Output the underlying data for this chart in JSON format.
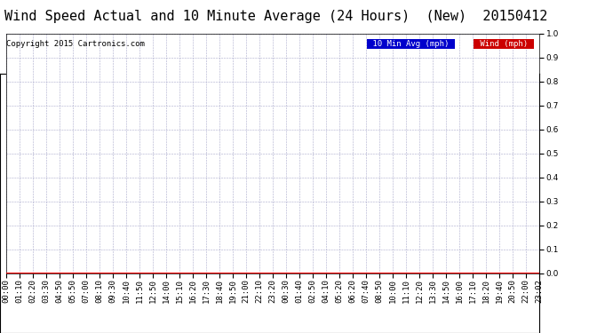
{
  "title": "Wind Speed Actual and 10 Minute Average (24 Hours)  (New)  20150412",
  "copyright": "Copyright 2015 Cartronics.com",
  "ylim": [
    0.0,
    1.0
  ],
  "yticks": [
    0.0,
    0.1,
    0.2,
    0.3,
    0.4,
    0.5,
    0.6,
    0.7,
    0.8,
    0.9,
    1.0
  ],
  "x_labels": [
    "00:00",
    "01:10",
    "02:20",
    "03:30",
    "04:50",
    "05:50",
    "07:00",
    "08:10",
    "09:30",
    "10:40",
    "11:50",
    "12:50",
    "14:00",
    "15:10",
    "16:20",
    "17:30",
    "18:40",
    "19:50",
    "21:00",
    "22:10",
    "23:20",
    "00:30",
    "01:40",
    "02:50",
    "04:10",
    "05:20",
    "06:20",
    "07:40",
    "08:50",
    "10:00",
    "11:10",
    "12:20",
    "13:30",
    "14:50",
    "16:00",
    "17:10",
    "18:20",
    "19:40",
    "20:50",
    "22:00",
    "23:02"
  ],
  "wind_data": [
    0,
    0,
    0,
    0,
    0,
    0,
    0,
    0,
    0,
    0,
    0,
    0,
    0,
    0,
    0,
    0,
    0,
    0,
    0,
    0,
    0,
    0,
    0,
    0,
    0,
    0,
    0,
    0,
    0,
    0,
    0,
    0,
    0,
    0,
    0,
    0,
    0,
    0,
    0,
    0,
    0
  ],
  "avg_data": [
    0,
    0,
    0,
    0,
    0,
    0,
    0,
    0,
    0,
    0,
    0,
    0,
    0,
    0,
    0,
    0,
    0,
    0,
    0,
    0,
    0,
    0,
    0,
    0,
    0,
    0,
    0,
    0,
    0,
    0,
    0,
    0,
    0,
    0,
    0,
    0,
    0,
    0,
    0,
    0,
    0
  ],
  "wind_color": "#ff0000",
  "avg_color": "#0000ff",
  "bg_color": "#ffffff",
  "grid_color": "#aaaacc",
  "title_fontsize": 11,
  "tick_fontsize": 6.5,
  "copyright_fontsize": 6.5,
  "legend_avg_bg": "#0000cc",
  "legend_wind_bg": "#cc0000",
  "legend_text_color": "#ffffff",
  "legend_fontsize": 6.5
}
